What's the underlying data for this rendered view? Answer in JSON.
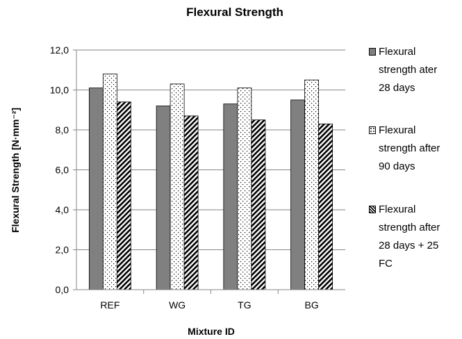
{
  "chart_data": {
    "type": "bar",
    "title": "Flexural Strength",
    "xlabel": "Mixture ID",
    "ylabel": "Flexural Strength  [N·mm⁻²]",
    "categories": [
      "REF",
      "WG",
      "TG",
      "BG"
    ],
    "ylim": [
      0,
      12
    ],
    "yticks": [
      "0,0",
      "2,0",
      "4,0",
      "6,0",
      "8,0",
      "10,0",
      "12,0"
    ],
    "grid": true,
    "legend_position": "right",
    "series": [
      {
        "name": "Flexural strength ater 28  days",
        "legend_lines": [
          "Flexural",
          "strength ater",
          "28  days"
        ],
        "pattern": "solid",
        "color": "#808080",
        "values": [
          10.1,
          9.2,
          9.3,
          9.5
        ]
      },
      {
        "name": "Flexural strength after 90 days",
        "legend_lines": [
          "Flexural",
          "strength after",
          "90 days"
        ],
        "pattern": "dots",
        "color": "#ffffff",
        "values": [
          10.8,
          10.3,
          10.1,
          10.5
        ]
      },
      {
        "name": "Flexural strength after 28 days + 25 FC",
        "legend_lines": [
          "Flexural",
          "strength after",
          "28 days + 25",
          "FC"
        ],
        "pattern": "diagonal",
        "color": "#000000",
        "values": [
          9.4,
          8.7,
          8.5,
          8.3
        ]
      }
    ]
  }
}
